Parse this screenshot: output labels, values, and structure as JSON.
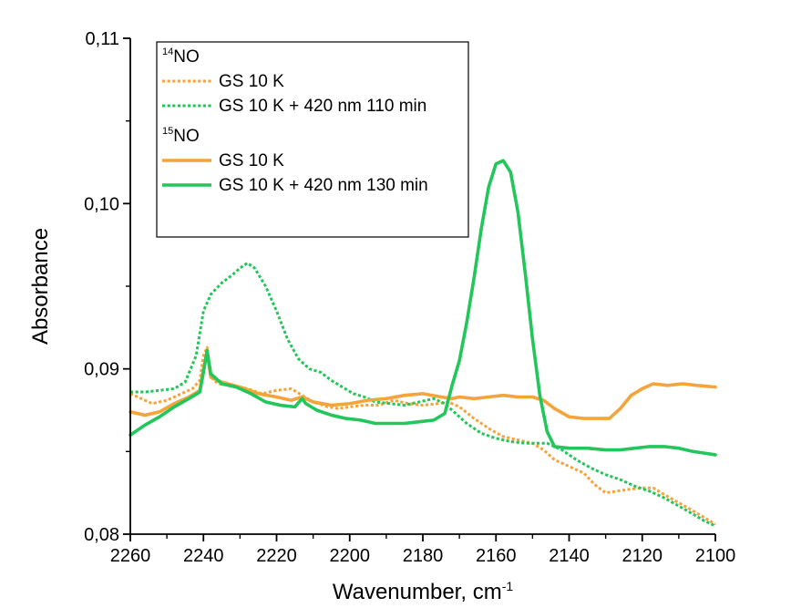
{
  "chart_data": {
    "type": "line",
    "xlabel": "Wavenumber, cm",
    "xlabel_sup": "-1",
    "ylabel": "Absorbance",
    "xlim": [
      2260,
      2100
    ],
    "ylim": [
      0.08,
      0.11
    ],
    "x_reversed": true,
    "x_ticks": [
      2260,
      2240,
      2220,
      2200,
      2180,
      2160,
      2140,
      2120,
      2100
    ],
    "x_tick_labels": [
      "2260",
      "2240",
      "2220",
      "2200",
      "2180",
      "2160",
      "2140",
      "2120",
      "2100"
    ],
    "y_ticks": [
      0.08,
      0.09,
      0.1,
      0.11
    ],
    "y_tick_labels": [
      "0,08",
      "0,09",
      "0,10",
      "0,11"
    ],
    "grid": false,
    "legend_placement": "top-left",
    "legend_groups": [
      {
        "sup": "14",
        "label": "NO",
        "series_idx": [
          0,
          1
        ]
      },
      {
        "sup": "15",
        "label": "NO",
        "series_idx": [
          2,
          3
        ]
      }
    ],
    "series": [
      {
        "name": "GS 10 K",
        "group": "14NO",
        "color": "#f4a43a",
        "style": "dotted",
        "points": [
          [
            2260,
            0.0885
          ],
          [
            2257,
            0.0882
          ],
          [
            2254,
            0.0879
          ],
          [
            2250,
            0.0881
          ],
          [
            2246,
            0.0885
          ],
          [
            2243,
            0.0888
          ],
          [
            2241,
            0.0893
          ],
          [
            2240,
            0.0908
          ],
          [
            2239,
            0.0913
          ],
          [
            2238,
            0.0895
          ],
          [
            2236,
            0.0891
          ],
          [
            2232,
            0.089
          ],
          [
            2228,
            0.0888
          ],
          [
            2224,
            0.0885
          ],
          [
            2220,
            0.0887
          ],
          [
            2216,
            0.0888
          ],
          [
            2213,
            0.0884
          ],
          [
            2210,
            0.088
          ],
          [
            2206,
            0.0877
          ],
          [
            2203,
            0.0876
          ],
          [
            2200,
            0.0877
          ],
          [
            2196,
            0.0878
          ],
          [
            2192,
            0.0878
          ],
          [
            2188,
            0.0881
          ],
          [
            2184,
            0.0879
          ],
          [
            2180,
            0.0878
          ],
          [
            2176,
            0.0879
          ],
          [
            2173,
            0.088
          ],
          [
            2170,
            0.0877
          ],
          [
            2166,
            0.087
          ],
          [
            2162,
            0.0864
          ],
          [
            2158,
            0.0859
          ],
          [
            2154,
            0.0857
          ],
          [
            2150,
            0.0855
          ],
          [
            2147,
            0.0851
          ],
          [
            2144,
            0.0845
          ],
          [
            2140,
            0.0841
          ],
          [
            2136,
            0.0837
          ],
          [
            2133,
            0.083
          ],
          [
            2130,
            0.0825
          ],
          [
            2127,
            0.0826
          ],
          [
            2124,
            0.0827
          ],
          [
            2120,
            0.0828
          ],
          [
            2117,
            0.0828
          ],
          [
            2114,
            0.0824
          ],
          [
            2110,
            0.0819
          ],
          [
            2106,
            0.0814
          ],
          [
            2103,
            0.081
          ],
          [
            2100,
            0.0806
          ]
        ]
      },
      {
        "name": "GS 10 K + 420 nm 110 min",
        "group": "14NO",
        "color": "#22c65a",
        "style": "dotted",
        "points": [
          [
            2260,
            0.0886
          ],
          [
            2256,
            0.0886
          ],
          [
            2252,
            0.0887
          ],
          [
            2248,
            0.0888
          ],
          [
            2245,
            0.0892
          ],
          [
            2242,
            0.0908
          ],
          [
            2240,
            0.0935
          ],
          [
            2238,
            0.0945
          ],
          [
            2235,
            0.0952
          ],
          [
            2232,
            0.0957
          ],
          [
            2230,
            0.0961
          ],
          [
            2228,
            0.0964
          ],
          [
            2226,
            0.0961
          ],
          [
            2223,
            0.095
          ],
          [
            2220,
            0.0935
          ],
          [
            2217,
            0.0918
          ],
          [
            2214,
            0.0906
          ],
          [
            2211,
            0.09
          ],
          [
            2208,
            0.0898
          ],
          [
            2205,
            0.0893
          ],
          [
            2202,
            0.0889
          ],
          [
            2199,
            0.0885
          ],
          [
            2196,
            0.0883
          ],
          [
            2193,
            0.088
          ],
          [
            2189,
            0.0879
          ],
          [
            2185,
            0.0878
          ],
          [
            2181,
            0.088
          ],
          [
            2177,
            0.0882
          ],
          [
            2174,
            0.0879
          ],
          [
            2171,
            0.0873
          ],
          [
            2168,
            0.0867
          ],
          [
            2164,
            0.0861
          ],
          [
            2160,
            0.0858
          ],
          [
            2156,
            0.0856
          ],
          [
            2152,
            0.0855
          ],
          [
            2149,
            0.0855
          ],
          [
            2146,
            0.0855
          ],
          [
            2142,
            0.0851
          ],
          [
            2138,
            0.0845
          ],
          [
            2134,
            0.084
          ],
          [
            2130,
            0.0836
          ],
          [
            2126,
            0.0833
          ],
          [
            2122,
            0.0829
          ],
          [
            2118,
            0.0826
          ],
          [
            2114,
            0.0822
          ],
          [
            2110,
            0.0817
          ],
          [
            2106,
            0.0812
          ],
          [
            2103,
            0.0808
          ],
          [
            2100,
            0.0805
          ]
        ]
      },
      {
        "name": "GS 10 K",
        "group": "15NO",
        "color": "#f4a43a",
        "style": "solid",
        "points": [
          [
            2260,
            0.0874
          ],
          [
            2256,
            0.0872
          ],
          [
            2252,
            0.0874
          ],
          [
            2248,
            0.0879
          ],
          [
            2244,
            0.0883
          ],
          [
            2241,
            0.0887
          ],
          [
            2240,
            0.09
          ],
          [
            2239,
            0.091
          ],
          [
            2238,
            0.0895
          ],
          [
            2235,
            0.0892
          ],
          [
            2230,
            0.0889
          ],
          [
            2225,
            0.0885
          ],
          [
            2220,
            0.0883
          ],
          [
            2216,
            0.0881
          ],
          [
            2213,
            0.0883
          ],
          [
            2210,
            0.088
          ],
          [
            2205,
            0.0878
          ],
          [
            2200,
            0.0879
          ],
          [
            2195,
            0.0881
          ],
          [
            2190,
            0.0882
          ],
          [
            2185,
            0.0884
          ],
          [
            2180,
            0.0885
          ],
          [
            2175,
            0.0883
          ],
          [
            2172,
            0.0882
          ],
          [
            2170,
            0.0883
          ],
          [
            2166,
            0.0882
          ],
          [
            2162,
            0.0883
          ],
          [
            2158,
            0.0884
          ],
          [
            2154,
            0.0883
          ],
          [
            2150,
            0.0883
          ],
          [
            2147,
            0.0881
          ],
          [
            2144,
            0.0876
          ],
          [
            2140,
            0.0871
          ],
          [
            2136,
            0.087
          ],
          [
            2132,
            0.087
          ],
          [
            2129,
            0.087
          ],
          [
            2126,
            0.0876
          ],
          [
            2123,
            0.0884
          ],
          [
            2120,
            0.0888
          ],
          [
            2117,
            0.0891
          ],
          [
            2113,
            0.089
          ],
          [
            2109,
            0.0891
          ],
          [
            2105,
            0.089
          ],
          [
            2100,
            0.0889
          ]
        ]
      },
      {
        "name": "GS 10 K + 420 nm 130 min",
        "group": "15NO",
        "color": "#22c65a",
        "style": "solid",
        "points": [
          [
            2260,
            0.086
          ],
          [
            2256,
            0.0866
          ],
          [
            2252,
            0.0871
          ],
          [
            2248,
            0.0877
          ],
          [
            2244,
            0.0882
          ],
          [
            2241,
            0.0886
          ],
          [
            2240,
            0.0898
          ],
          [
            2239,
            0.0911
          ],
          [
            2238,
            0.0897
          ],
          [
            2235,
            0.0891
          ],
          [
            2231,
            0.0889
          ],
          [
            2227,
            0.0885
          ],
          [
            2223,
            0.088
          ],
          [
            2219,
            0.0878
          ],
          [
            2215,
            0.0877
          ],
          [
            2213,
            0.0882
          ],
          [
            2212,
            0.0879
          ],
          [
            2209,
            0.0875
          ],
          [
            2205,
            0.0872
          ],
          [
            2201,
            0.087
          ],
          [
            2197,
            0.0869
          ],
          [
            2193,
            0.0867
          ],
          [
            2189,
            0.0867
          ],
          [
            2185,
            0.0867
          ],
          [
            2181,
            0.0868
          ],
          [
            2177,
            0.0869
          ],
          [
            2174,
            0.0873
          ],
          [
            2172,
            0.089
          ],
          [
            2170,
            0.0905
          ],
          [
            2168,
            0.0928
          ],
          [
            2166,
            0.0955
          ],
          [
            2164,
            0.0985
          ],
          [
            2162,
            0.101
          ],
          [
            2160,
            0.1024
          ],
          [
            2158,
            0.1026
          ],
          [
            2156,
            0.1019
          ],
          [
            2154,
            0.0995
          ],
          [
            2152,
            0.0958
          ],
          [
            2150,
            0.0918
          ],
          [
            2148,
            0.0884
          ],
          [
            2146,
            0.0862
          ],
          [
            2144,
            0.0853
          ],
          [
            2140,
            0.0852
          ],
          [
            2135,
            0.0852
          ],
          [
            2130,
            0.0851
          ],
          [
            2126,
            0.0851
          ],
          [
            2122,
            0.0852
          ],
          [
            2118,
            0.0853
          ],
          [
            2114,
            0.0853
          ],
          [
            2110,
            0.0852
          ],
          [
            2106,
            0.085
          ],
          [
            2103,
            0.0849
          ],
          [
            2100,
            0.0848
          ]
        ]
      }
    ]
  }
}
